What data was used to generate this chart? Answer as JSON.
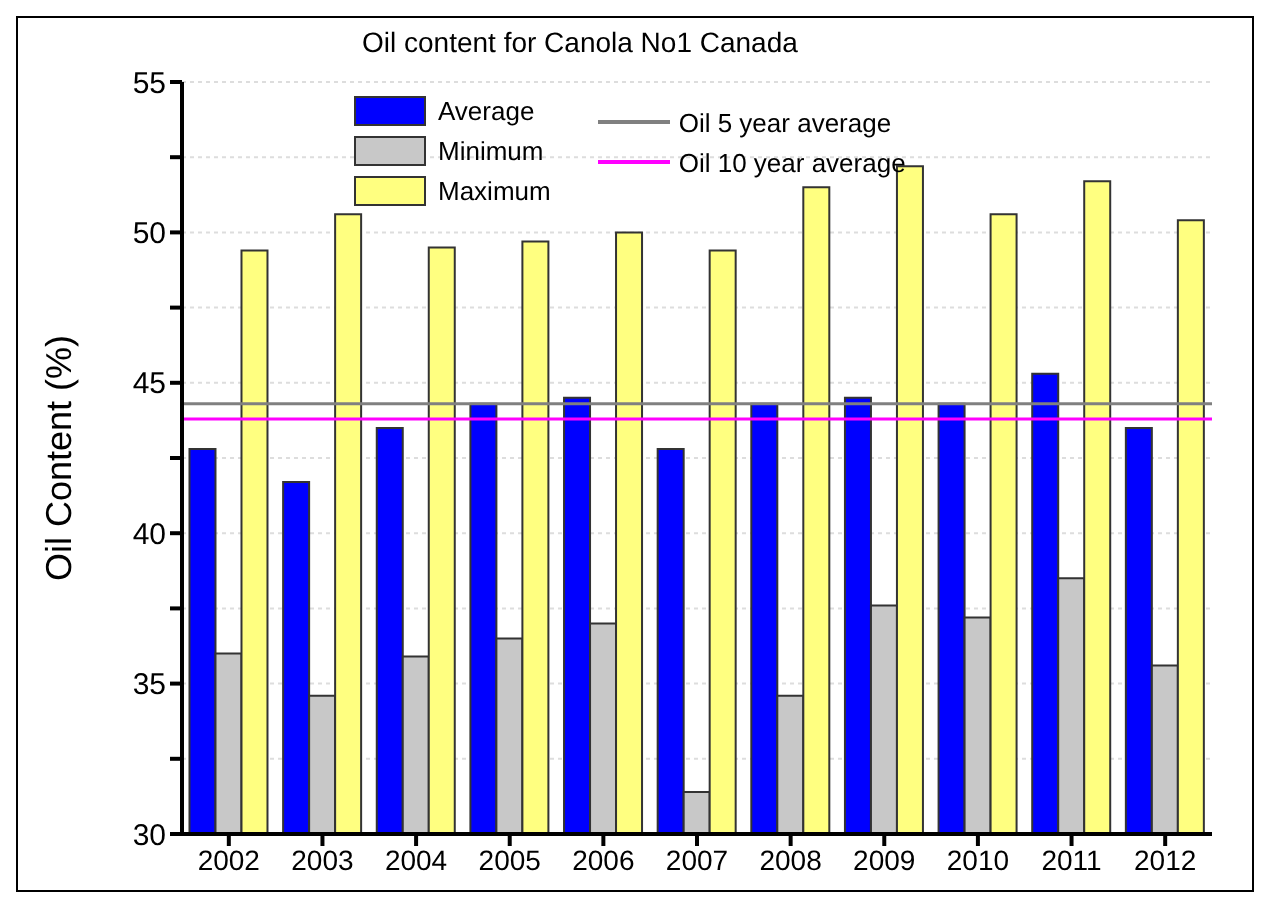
{
  "chart_data": {
    "type": "bar",
    "title": "Oil content for Canola No1 Canada",
    "ylabel": "Oil Content (%)",
    "categories": [
      "2002",
      "2003",
      "2004",
      "2005",
      "2006",
      "2007",
      "2008",
      "2009",
      "2010",
      "2011",
      "2012"
    ],
    "series": [
      {
        "name": "Average",
        "color": "#0000ff",
        "values": [
          42.8,
          41.7,
          43.5,
          44.3,
          44.5,
          42.8,
          44.3,
          44.5,
          44.3,
          45.3,
          43.5
        ]
      },
      {
        "name": "Minimum",
        "color": "#c8c8c8",
        "values": [
          36.0,
          34.6,
          35.9,
          36.5,
          37.0,
          31.4,
          34.6,
          37.6,
          37.2,
          38.5,
          35.6
        ]
      },
      {
        "name": "Maximum",
        "color": "#ffff80",
        "values": [
          49.4,
          50.6,
          49.5,
          49.7,
          50.0,
          49.4,
          51.5,
          52.2,
          50.6,
          51.7,
          50.4
        ]
      }
    ],
    "ref_lines": [
      {
        "axis": "y",
        "value": 44.3,
        "label": "Oil 5 year average",
        "color": "#808080"
      },
      {
        "axis": "y",
        "value": 43.8,
        "label": "Oil 10 year average",
        "color": "#ff00ff"
      }
    ],
    "ylim": [
      30,
      55
    ],
    "yticks": [
      30,
      {
        "value": 32.5,
        "label": null
      },
      35,
      {
        "value": 37.5,
        "label": null
      },
      40,
      {
        "value": 42.5,
        "label": null
      },
      45,
      {
        "value": 47.5,
        "label": null
      },
      50,
      {
        "value": 52.5,
        "label": null
      },
      55
    ],
    "grid": "y",
    "legend": "top"
  }
}
